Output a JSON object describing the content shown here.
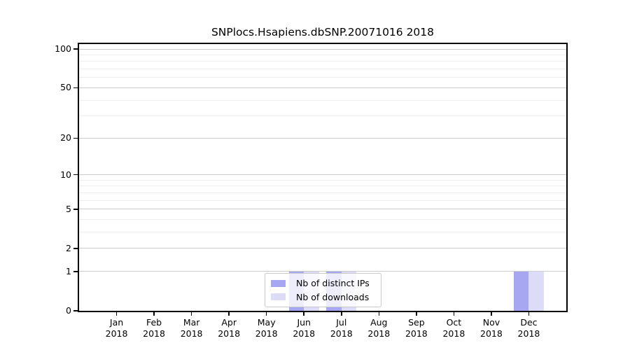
{
  "chart_data": {
    "type": "bar",
    "title": "SNPlocs.Hsapiens.dbSNP.20071016 2018",
    "x_categories": [
      {
        "month": "Jan",
        "year": "2018"
      },
      {
        "month": "Feb",
        "year": "2018"
      },
      {
        "month": "Mar",
        "year": "2018"
      },
      {
        "month": "Apr",
        "year": "2018"
      },
      {
        "month": "May",
        "year": "2018"
      },
      {
        "month": "Jun",
        "year": "2018"
      },
      {
        "month": "Jul",
        "year": "2018"
      },
      {
        "month": "Aug",
        "year": "2018"
      },
      {
        "month": "Sep",
        "year": "2018"
      },
      {
        "month": "Oct",
        "year": "2018"
      },
      {
        "month": "Nov",
        "year": "2018"
      },
      {
        "month": "Dec",
        "year": "2018"
      }
    ],
    "series": [
      {
        "name": "Nb of distinct IPs",
        "color": "#a6a6f1",
        "values": [
          0,
          0,
          0,
          0,
          0,
          1,
          1,
          0,
          0,
          0,
          0,
          1
        ]
      },
      {
        "name": "Nb of downloads",
        "color": "#dcdcf8",
        "values": [
          0,
          0,
          0,
          0,
          0,
          1,
          1,
          0,
          0,
          0,
          0,
          1
        ]
      }
    ],
    "y_axis": {
      "scale": "log10(1+v)",
      "major_ticks": [
        0,
        1,
        2,
        5,
        10,
        20,
        50,
        100
      ],
      "minor_gridlines": [
        3,
        4,
        6,
        7,
        8,
        9,
        30,
        40,
        60,
        70,
        80,
        90
      ],
      "ylim": [
        0,
        110
      ]
    },
    "legend": {
      "position": "lower-center-inside",
      "items": [
        "Nb of distinct IPs",
        "Nb of downloads"
      ]
    },
    "colors": {
      "major_gridline": "#cccccc",
      "minor_gridline": "#eeeeee",
      "axis_frame": "#000000",
      "background": "#ffffff"
    }
  }
}
